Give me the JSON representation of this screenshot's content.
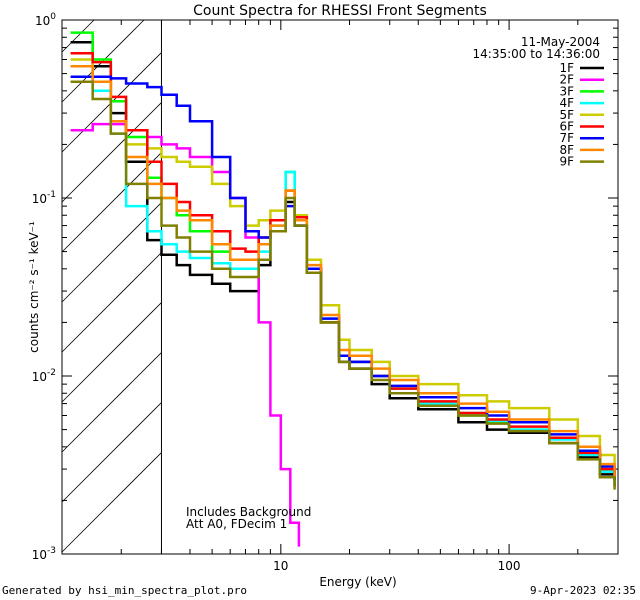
{
  "chart_data": {
    "type": "line",
    "title": "Count Spectra for RHESSI Front Segments",
    "xlabel": "Energy (keV)",
    "ylabel": "counts cm⁻² s⁻¹ keV⁻¹",
    "xscale": "log",
    "yscale": "log",
    "xlim": [
      1.1,
      300
    ],
    "ylim": [
      0.001,
      1
    ],
    "xticks": [
      {
        "value": 10,
        "label": "10"
      },
      {
        "value": 100,
        "label": "100"
      }
    ],
    "yticks": [
      {
        "value": 1,
        "base": "10",
        "exp": "0"
      },
      {
        "value": 0.1,
        "base": "10",
        "exp": "-1"
      },
      {
        "value": 0.01,
        "base": "10",
        "exp": "-2"
      },
      {
        "value": 0.001,
        "base": "10",
        "exp": "-3"
      }
    ],
    "date": "11-May-2004",
    "time_range": "14:35:00 to 14:36:00",
    "annotations": [
      "Includes Background",
      "Att A0, FDecim 1"
    ],
    "hatched_region": [
      1.1,
      3.0
    ],
    "vertical_line": 3.0,
    "series": [
      {
        "name": "1F",
        "color": "#000000",
        "points": [
          [
            1.2,
            0.75
          ],
          [
            1.5,
            0.55
          ],
          [
            1.8,
            0.3
          ],
          [
            2.1,
            0.16
          ],
          [
            2.6,
            0.058
          ],
          [
            3.0,
            0.048
          ],
          [
            3.5,
            0.042
          ],
          [
            4.0,
            0.037
          ],
          [
            5.0,
            0.033
          ],
          [
            6.0,
            0.03
          ],
          [
            7.0,
            0.03
          ],
          [
            8.0,
            0.042
          ],
          [
            9.0,
            0.065
          ],
          [
            10.5,
            0.095
          ],
          [
            11.5,
            0.07
          ],
          [
            13.0,
            0.038
          ],
          [
            15.0,
            0.02
          ],
          [
            18.0,
            0.012
          ],
          [
            20.0,
            0.011
          ],
          [
            25.0,
            0.009
          ],
          [
            30.0,
            0.0075
          ],
          [
            40.0,
            0.0065
          ],
          [
            60.0,
            0.0055
          ],
          [
            80.0,
            0.005
          ],
          [
            100.0,
            0.0048
          ],
          [
            150.0,
            0.0042
          ],
          [
            200.0,
            0.0035
          ],
          [
            250.0,
            0.0028
          ],
          [
            290.0,
            0.0024
          ]
        ]
      },
      {
        "name": "2F",
        "color": "#ff00ff",
        "points": [
          [
            1.2,
            0.24
          ],
          [
            1.5,
            0.26
          ],
          [
            1.8,
            0.26
          ],
          [
            2.1,
            0.24
          ],
          [
            2.6,
            0.22
          ],
          [
            3.0,
            0.2
          ],
          [
            3.5,
            0.19
          ],
          [
            4.0,
            0.17
          ],
          [
            5.0,
            0.14
          ],
          [
            6.0,
            0.1
          ],
          [
            7.0,
            0.06
          ],
          [
            8.0,
            0.02
          ],
          [
            9.0,
            0.006
          ],
          [
            10.0,
            0.003
          ],
          [
            11.0,
            0.0015
          ],
          [
            12.0,
            0.0011
          ]
        ]
      },
      {
        "name": "3F",
        "color": "#00ff00",
        "points": [
          [
            1.2,
            0.85
          ],
          [
            1.5,
            0.6
          ],
          [
            1.8,
            0.35
          ],
          [
            2.1,
            0.22
          ],
          [
            2.6,
            0.13
          ],
          [
            3.0,
            0.1
          ],
          [
            3.5,
            0.08
          ],
          [
            4.0,
            0.065
          ],
          [
            5.0,
            0.05
          ],
          [
            6.0,
            0.045
          ],
          [
            7.0,
            0.045
          ],
          [
            8.0,
            0.055
          ],
          [
            9.0,
            0.075
          ],
          [
            10.5,
            0.14
          ],
          [
            11.5,
            0.08
          ],
          [
            13.0,
            0.04
          ],
          [
            15.0,
            0.02
          ],
          [
            18.0,
            0.013
          ],
          [
            20.0,
            0.012
          ],
          [
            25.0,
            0.01
          ],
          [
            30.0,
            0.0085
          ],
          [
            40.0,
            0.007
          ],
          [
            60.0,
            0.006
          ],
          [
            80.0,
            0.0055
          ],
          [
            100.0,
            0.005
          ],
          [
            150.0,
            0.0045
          ],
          [
            200.0,
            0.0037
          ],
          [
            250.0,
            0.003
          ],
          [
            290.0,
            0.0025
          ]
        ]
      },
      {
        "name": "4F",
        "color": "#00ffff",
        "points": [
          [
            1.2,
            0.55
          ],
          [
            1.5,
            0.4
          ],
          [
            1.8,
            0.23
          ],
          [
            2.1,
            0.09
          ],
          [
            2.6,
            0.065
          ],
          [
            3.0,
            0.055
          ],
          [
            3.5,
            0.05
          ],
          [
            4.0,
            0.046
          ],
          [
            5.0,
            0.043
          ],
          [
            6.0,
            0.04
          ],
          [
            7.0,
            0.04
          ],
          [
            8.0,
            0.05
          ],
          [
            9.0,
            0.07
          ],
          [
            10.5,
            0.14
          ],
          [
            11.5,
            0.08
          ],
          [
            13.0,
            0.04
          ],
          [
            15.0,
            0.021
          ],
          [
            18.0,
            0.013
          ],
          [
            20.0,
            0.012
          ],
          [
            25.0,
            0.01
          ],
          [
            30.0,
            0.0085
          ],
          [
            40.0,
            0.007
          ],
          [
            60.0,
            0.0062
          ],
          [
            80.0,
            0.0056
          ],
          [
            100.0,
            0.005
          ],
          [
            150.0,
            0.0044
          ],
          [
            200.0,
            0.0036
          ],
          [
            250.0,
            0.0029
          ],
          [
            290.0,
            0.0025
          ]
        ]
      },
      {
        "name": "5F",
        "color": "#cccc00",
        "points": [
          [
            1.2,
            0.6
          ],
          [
            1.5,
            0.45
          ],
          [
            1.8,
            0.27
          ],
          [
            2.1,
            0.2
          ],
          [
            2.6,
            0.19
          ],
          [
            3.0,
            0.17
          ],
          [
            3.5,
            0.16
          ],
          [
            4.0,
            0.15
          ],
          [
            5.0,
            0.12
          ],
          [
            6.0,
            0.09
          ],
          [
            7.0,
            0.07
          ],
          [
            8.0,
            0.075
          ],
          [
            9.0,
            0.085
          ],
          [
            10.5,
            0.11
          ],
          [
            11.5,
            0.08
          ],
          [
            13.0,
            0.045
          ],
          [
            15.0,
            0.025
          ],
          [
            18.0,
            0.016
          ],
          [
            20.0,
            0.014
          ],
          [
            25.0,
            0.012
          ],
          [
            30.0,
            0.01
          ],
          [
            40.0,
            0.009
          ],
          [
            60.0,
            0.0078
          ],
          [
            80.0,
            0.0072
          ],
          [
            100.0,
            0.0066
          ],
          [
            150.0,
            0.0057
          ],
          [
            200.0,
            0.0046
          ],
          [
            250.0,
            0.0036
          ],
          [
            290.0,
            0.003
          ]
        ]
      },
      {
        "name": "6F",
        "color": "#ff0000",
        "points": [
          [
            1.2,
            0.65
          ],
          [
            1.5,
            0.58
          ],
          [
            1.8,
            0.37
          ],
          [
            2.1,
            0.24
          ],
          [
            2.6,
            0.16
          ],
          [
            3.0,
            0.12
          ],
          [
            3.5,
            0.095
          ],
          [
            4.0,
            0.08
          ],
          [
            5.0,
            0.065
          ],
          [
            6.0,
            0.052
          ],
          [
            7.0,
            0.05
          ],
          [
            8.0,
            0.06
          ],
          [
            9.0,
            0.075
          ],
          [
            10.5,
            0.11
          ],
          [
            11.5,
            0.078
          ],
          [
            13.0,
            0.04
          ],
          [
            15.0,
            0.02
          ],
          [
            18.0,
            0.013
          ],
          [
            20.0,
            0.012
          ],
          [
            25.0,
            0.01
          ],
          [
            30.0,
            0.0085
          ],
          [
            40.0,
            0.0072
          ],
          [
            60.0,
            0.0062
          ],
          [
            80.0,
            0.0057
          ],
          [
            100.0,
            0.0052
          ],
          [
            150.0,
            0.0045
          ],
          [
            200.0,
            0.0037
          ],
          [
            250.0,
            0.003
          ],
          [
            290.0,
            0.0026
          ]
        ]
      },
      {
        "name": "7F",
        "color": "#0000ff",
        "points": [
          [
            1.2,
            0.48
          ],
          [
            1.5,
            0.48
          ],
          [
            1.8,
            0.47
          ],
          [
            2.1,
            0.44
          ],
          [
            2.6,
            0.42
          ],
          [
            3.0,
            0.38
          ],
          [
            3.5,
            0.33
          ],
          [
            4.0,
            0.27
          ],
          [
            5.0,
            0.17
          ],
          [
            6.0,
            0.1
          ],
          [
            7.0,
            0.065
          ],
          [
            8.0,
            0.06
          ],
          [
            9.0,
            0.065
          ],
          [
            10.5,
            0.09
          ],
          [
            11.5,
            0.07
          ],
          [
            13.0,
            0.04
          ],
          [
            15.0,
            0.021
          ],
          [
            18.0,
            0.013
          ],
          [
            20.0,
            0.012
          ],
          [
            25.0,
            0.01
          ],
          [
            30.0,
            0.0088
          ],
          [
            40.0,
            0.0076
          ],
          [
            60.0,
            0.0066
          ],
          [
            80.0,
            0.006
          ],
          [
            100.0,
            0.0055
          ],
          [
            150.0,
            0.0047
          ],
          [
            200.0,
            0.0038
          ],
          [
            250.0,
            0.0031
          ],
          [
            290.0,
            0.0026
          ]
        ]
      },
      {
        "name": "8F",
        "color": "#ff8800",
        "points": [
          [
            1.2,
            0.55
          ],
          [
            1.5,
            0.45
          ],
          [
            1.8,
            0.27
          ],
          [
            2.1,
            0.17
          ],
          [
            2.6,
            0.12
          ],
          [
            3.0,
            0.1
          ],
          [
            3.5,
            0.085
          ],
          [
            4.0,
            0.075
          ],
          [
            5.0,
            0.055
          ],
          [
            6.0,
            0.045
          ],
          [
            7.0,
            0.045
          ],
          [
            8.0,
            0.055
          ],
          [
            9.0,
            0.07
          ],
          [
            10.5,
            0.11
          ],
          [
            11.5,
            0.075
          ],
          [
            13.0,
            0.042
          ],
          [
            15.0,
            0.022
          ],
          [
            18.0,
            0.014
          ],
          [
            20.0,
            0.013
          ],
          [
            25.0,
            0.011
          ],
          [
            30.0,
            0.0095
          ],
          [
            40.0,
            0.008
          ],
          [
            60.0,
            0.007
          ],
          [
            80.0,
            0.0063
          ],
          [
            100.0,
            0.0057
          ],
          [
            150.0,
            0.0049
          ],
          [
            200.0,
            0.004
          ],
          [
            250.0,
            0.0032
          ],
          [
            290.0,
            0.0027
          ]
        ]
      },
      {
        "name": "9F",
        "color": "#808000",
        "points": [
          [
            1.2,
            0.45
          ],
          [
            1.5,
            0.36
          ],
          [
            1.8,
            0.23
          ],
          [
            2.1,
            0.12
          ],
          [
            2.6,
            0.1
          ],
          [
            3.0,
            0.07
          ],
          [
            3.5,
            0.06
          ],
          [
            4.0,
            0.05
          ],
          [
            5.0,
            0.04
          ],
          [
            6.0,
            0.036
          ],
          [
            7.0,
            0.036
          ],
          [
            8.0,
            0.045
          ],
          [
            9.0,
            0.065
          ],
          [
            10.5,
            0.1
          ],
          [
            11.5,
            0.07
          ],
          [
            13.0,
            0.038
          ],
          [
            15.0,
            0.02
          ],
          [
            18.0,
            0.012
          ],
          [
            20.0,
            0.011
          ],
          [
            25.0,
            0.0095
          ],
          [
            30.0,
            0.008
          ],
          [
            40.0,
            0.0068
          ],
          [
            60.0,
            0.006
          ],
          [
            80.0,
            0.0054
          ],
          [
            100.0,
            0.0049
          ],
          [
            150.0,
            0.0042
          ],
          [
            200.0,
            0.0034
          ],
          [
            250.0,
            0.0027
          ],
          [
            290.0,
            0.0023
          ]
        ]
      }
    ]
  },
  "footer": {
    "generated_by": "Generated by hsi_min_spectra_plot.pro",
    "timestamp": "9-Apr-2023 02:35"
  }
}
